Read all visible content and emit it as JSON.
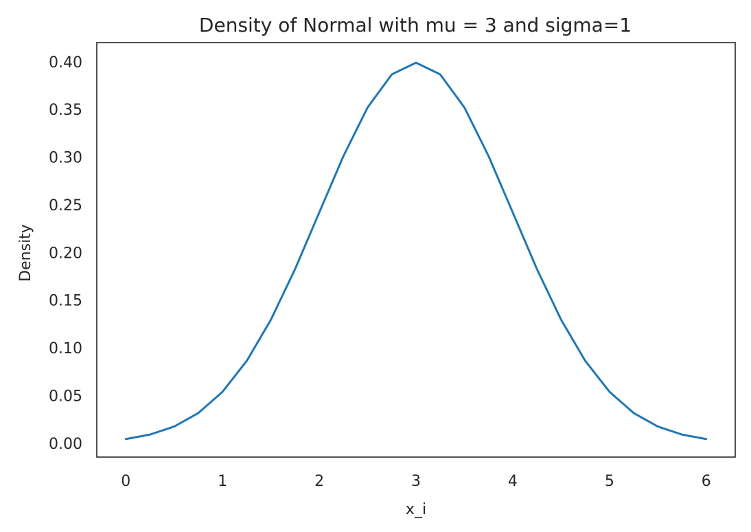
{
  "chart_data": {
    "type": "line",
    "title": "Density of Normal with mu = 3 and sigma=1",
    "xlabel": "x_i",
    "ylabel": "Density",
    "xlim": [
      -0.3,
      6.3
    ],
    "ylim": [
      -0.0145,
      0.42
    ],
    "xticks": [
      0,
      1,
      2,
      3,
      4,
      5,
      6
    ],
    "xtick_labels": [
      "0",
      "1",
      "2",
      "3",
      "4",
      "5",
      "6"
    ],
    "yticks": [
      0.0,
      0.05,
      0.1,
      0.15,
      0.2,
      0.25,
      0.3,
      0.35,
      0.4
    ],
    "ytick_labels": [
      "0.00",
      "0.05",
      "0.10",
      "0.15",
      "0.20",
      "0.25",
      "0.30",
      "0.35",
      "0.40"
    ],
    "grid": false,
    "legend": "none",
    "line_color": "#1f77b4",
    "series": [
      {
        "x": [
          0.0,
          0.25,
          0.5,
          0.75,
          1.0,
          1.25,
          1.5,
          1.75,
          2.0,
          2.25,
          2.5,
          2.75,
          3.0,
          3.25,
          3.5,
          3.75,
          4.0,
          4.25,
          4.5,
          4.75,
          5.0,
          5.25,
          5.5,
          5.75,
          6.0
        ],
        "y": [
          0.0044,
          0.0091,
          0.0175,
          0.0317,
          0.054,
          0.0863,
          0.1295,
          0.1826,
          0.242,
          0.3011,
          0.3521,
          0.3867,
          0.3989,
          0.3867,
          0.3521,
          0.3011,
          0.242,
          0.1826,
          0.1295,
          0.0863,
          0.054,
          0.0317,
          0.0175,
          0.0091,
          0.0044
        ]
      }
    ]
  }
}
